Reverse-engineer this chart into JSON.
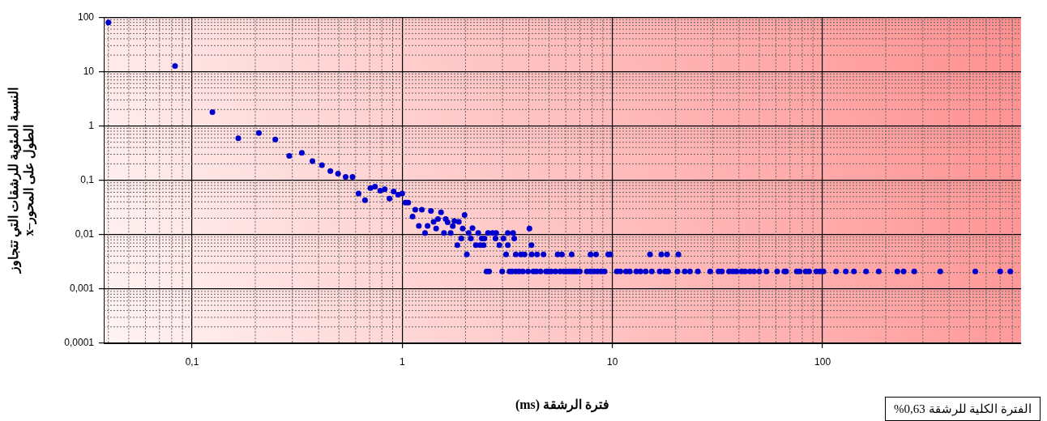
{
  "chart_data": {
    "type": "scatter",
    "xlabel": "فترة الرشقة (ms)",
    "ylabel": "النسبة المئوية للرشقات التي تتجاوز\nالطول على المحور–x",
    "annotations": [
      "الفترة الكلية للرشقة 0,63%"
    ],
    "log": "xy",
    "grid": true,
    "legend": false,
    "marker": "circle",
    "xlim": [
      0.038,
      880
    ],
    "ylim": [
      0.0001,
      100
    ],
    "xticks": [
      {
        "value": 0.1,
        "label": "0,1"
      },
      1,
      10,
      100
    ],
    "yticks": [
      {
        "value": 0.0001,
        "label": "0,0001"
      },
      {
        "value": 0.001,
        "label": "0,001"
      },
      {
        "value": 0.01,
        "label": "0,01"
      },
      {
        "value": 0.1,
        "label": "0,1"
      },
      1,
      10,
      100
    ],
    "x": [
      0.04,
      0.083,
      0.125,
      0.166,
      0.208,
      0.249,
      0.29,
      0.333,
      0.374,
      0.415,
      0.455,
      0.495,
      0.538,
      0.58,
      0.62,
      0.665,
      0.706,
      0.742,
      0.786,
      0.826,
      0.87,
      0.91,
      0.956,
      1.0,
      1.036,
      1.068,
      1.12,
      1.154,
      1.2,
      1.24,
      1.284,
      1.32,
      1.37,
      1.41,
      1.45,
      1.48,
      1.53,
      1.58,
      1.61,
      1.645,
      1.7,
      1.74,
      1.77,
      1.83,
      1.86,
      1.91,
      1.94,
      1.98,
      2.03,
      2.07,
      2.12,
      2.16,
      2.24,
      2.3,
      2.35,
      2.39,
      2.44,
      2.46,
      2.56,
      2.69,
      2.8,
      2.78,
      2.9,
      3.03,
      3.18,
      3.18,
      3.37,
      3.41,
      4.03,
      4.12,
      3.12,
      3.47,
      3.67,
      3.82,
      4.13,
      4.38,
      4.7,
      5.49,
      5.75,
      6.4,
      7.87,
      8.36,
      9.55,
      9.77,
      15.1,
      17.1,
      18.2,
      20.6,
      2.52,
      2.59,
      2.99,
      3.24,
      3.33,
      3.47,
      3.6,
      3.75,
      3.97,
      4.21,
      4.35,
      4.55,
      4.83,
      4.96,
      5.12,
      5.36,
      5.64,
      5.87,
      6.03,
      6.22,
      6.42,
      6.59,
      6.78,
      7.0,
      7.56,
      7.86,
      8.17,
      8.49,
      8.83,
      9.18,
      10.5,
      10.9,
      11.6,
      12.1,
      13.0,
      13.6,
      14.4,
      15.4,
      16.8,
      17.8,
      18.4,
      20.4,
      22.1,
      23.4,
      25.5,
      29.2,
      32.0,
      33.2,
      35.9,
      37.4,
      38.9,
      41.2,
      42.8,
      45.1,
      47.2,
      50.0,
      54.1,
      60.8,
      65.8,
      67.0,
      75.4,
      77.8,
      83.1,
      86.3,
      93.4,
      97.1,
      101,
      116,
      129,
      141,
      161,
      185,
      227,
      243,
      273,
      363,
      533,
      700,
      782
    ],
    "series": [
      {
        "color": "#0000cc",
        "values": [
          80,
          12.6,
          1.79,
          0.59,
          0.74,
          0.56,
          0.28,
          0.32,
          0.225,
          0.19,
          0.148,
          0.132,
          0.115,
          0.115,
          0.057,
          0.043,
          0.072,
          0.076,
          0.064,
          0.068,
          0.046,
          0.062,
          0.054,
          0.057,
          0.0386,
          0.0386,
          0.0214,
          0.0287,
          0.0145,
          0.0287,
          0.0107,
          0.0145,
          0.0272,
          0.0172,
          0.0129,
          0.0194,
          0.0257,
          0.0107,
          0.0194,
          0.0169,
          0.0107,
          0.0143,
          0.0178,
          0.0064,
          0.0172,
          0.0085,
          0.0129,
          0.0229,
          0.0043,
          0.0107,
          0.0085,
          0.0131,
          0.0064,
          0.0107,
          0.0064,
          0.0085,
          0.0064,
          0.0085,
          0.0107,
          0.0107,
          0.0107,
          0.0085,
          0.0064,
          0.0085,
          0.0107,
          0.0064,
          0.0107,
          0.0085,
          0.0129,
          0.0064,
          0.0043,
          0.0043,
          0.0043,
          0.0043,
          0.0043,
          0.0043,
          0.0043,
          0.0043,
          0.0043,
          0.0043,
          0.0043,
          0.0043,
          0.0043,
          0.0043,
          0.0043,
          0.0043,
          0.0043,
          0.0043,
          0.0021,
          0.0021,
          0.0021,
          0.0021,
          0.0021,
          0.0021,
          0.0021,
          0.0021,
          0.0021,
          0.0021,
          0.0021,
          0.0021,
          0.0021,
          0.0021,
          0.0021,
          0.0021,
          0.0021,
          0.0021,
          0.0021,
          0.0021,
          0.0021,
          0.0021,
          0.0021,
          0.0021,
          0.0021,
          0.0021,
          0.0021,
          0.0021,
          0.0021,
          0.0021,
          0.0021,
          0.0021,
          0.0021,
          0.0021,
          0.0021,
          0.0021,
          0.0021,
          0.0021,
          0.0021,
          0.0021,
          0.0021,
          0.0021,
          0.0021,
          0.0021,
          0.0021,
          0.0021,
          0.0021,
          0.0021,
          0.0021,
          0.0021,
          0.0021,
          0.0021,
          0.0021,
          0.0021,
          0.0021,
          0.0021,
          0.0021,
          0.0021,
          0.0021,
          0.0021,
          0.0021,
          0.0021,
          0.0021,
          0.0021,
          0.0021,
          0.0021,
          0.0021,
          0.0021,
          0.0021,
          0.0021,
          0.0021,
          0.0021,
          0.0021,
          0.0021,
          0.0021,
          0.0021,
          0.0021,
          0.0021,
          0.0021
        ]
      }
    ]
  }
}
